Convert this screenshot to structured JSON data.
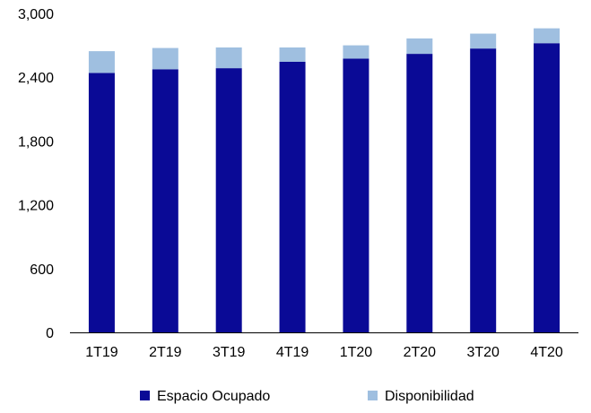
{
  "chart_data": {
    "type": "bar",
    "stacked": true,
    "categories": [
      "1T19",
      "2T19",
      "3T19",
      "4T19",
      "1T20",
      "2T20",
      "3T20",
      "4T20"
    ],
    "series": [
      {
        "name": "Espacio Ocupado",
        "color": "#0a0a96",
        "values": [
          2440,
          2475,
          2485,
          2545,
          2575,
          2620,
          2670,
          2720
        ]
      },
      {
        "name": "Disponibilidad",
        "color": "#9fbfe0",
        "values": [
          205,
          200,
          195,
          135,
          125,
          145,
          140,
          140
        ]
      }
    ],
    "ylim": [
      0,
      3000
    ],
    "yticks": [
      "0",
      "600",
      "1,200",
      "1,800",
      "2,400",
      "3,000"
    ],
    "ytick_values": [
      0,
      600,
      1200,
      1800,
      2400,
      3000
    ],
    "grid": false,
    "legend_position": "bottom"
  }
}
